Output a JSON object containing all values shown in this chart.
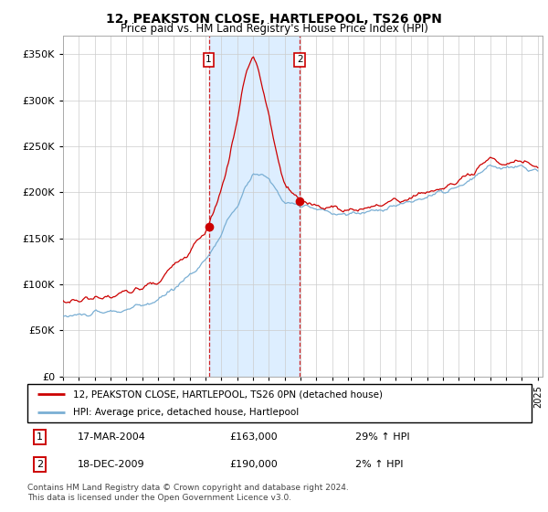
{
  "title": "12, PEAKSTON CLOSE, HARTLEPOOL, TS26 0PN",
  "subtitle": "Price paid vs. HM Land Registry's House Price Index (HPI)",
  "ylim": [
    0,
    370000
  ],
  "yticks": [
    0,
    50000,
    100000,
    150000,
    200000,
    250000,
    300000,
    350000
  ],
  "sale1_date_num": 2004.21,
  "sale1_price": 163000,
  "sale1_label": "1",
  "sale1_date_str": "17-MAR-2004",
  "sale1_pct": "29%",
  "sale2_date_num": 2009.96,
  "sale2_price": 190000,
  "sale2_label": "2",
  "sale2_date_str": "18-DEC-2009",
  "sale2_pct": "2%",
  "red_line_color": "#cc0000",
  "blue_line_color": "#7aafd4",
  "shade_color": "#ddeeff",
  "vline_color": "#cc0000",
  "legend_label_red": "12, PEAKSTON CLOSE, HARTLEPOOL, TS26 0PN (detached house)",
  "legend_label_blue": "HPI: Average price, detached house, Hartlepool",
  "footer": "Contains HM Land Registry data © Crown copyright and database right 2024.\nThis data is licensed under the Open Government Licence v3.0.",
  "background_color": "#ffffff"
}
